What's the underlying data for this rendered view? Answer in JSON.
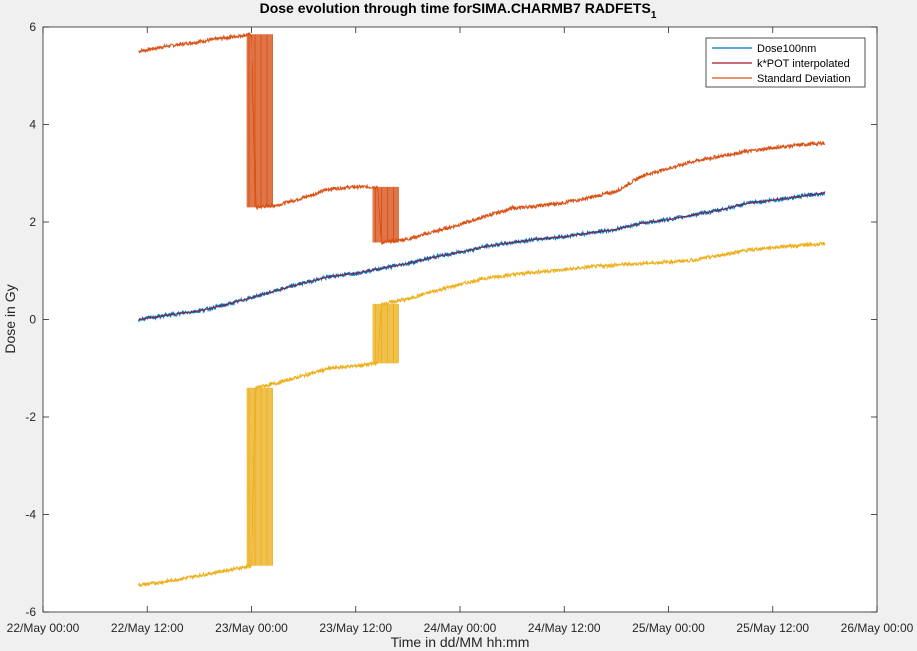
{
  "chart_data": {
    "type": "line",
    "title": "Dose evolution through time forSIMA.CHARMB7 RADFETS",
    "title_subscript": "1",
    "xlabel": "Time in dd/MM hh:mm",
    "ylabel": "Dose in Gy",
    "x_unit": "hours since 22/May 00:00",
    "xlim": [
      0,
      96
    ],
    "ylim": [
      -6,
      6
    ],
    "x_ticks": [
      0,
      12,
      24,
      36,
      48,
      60,
      72,
      84,
      96
    ],
    "x_tick_labels": [
      "22/May 00:00",
      "22/May 12:00",
      "23/May 00:00",
      "23/May 12:00",
      "24/May 00:00",
      "24/May 12:00",
      "25/May 00:00",
      "25/May 12:00",
      "26/May 00:00"
    ],
    "y_ticks": [
      -6,
      -4,
      -2,
      0,
      2,
      4,
      6
    ],
    "y_tick_labels": [
      "-6",
      "-4",
      "-2",
      "0",
      "2",
      "4",
      "6"
    ],
    "legend_position": "top-right",
    "series": [
      {
        "name": "Dose100nm",
        "color": "#0072bd",
        "x": [
          11,
          14,
          18,
          21,
          24,
          27,
          30,
          33,
          36,
          39,
          42,
          45,
          48,
          51,
          54,
          57,
          60,
          63,
          66,
          69,
          72,
          75,
          78,
          81,
          84,
          87,
          90
        ],
        "y": [
          0.0,
          0.08,
          0.18,
          0.3,
          0.45,
          0.6,
          0.75,
          0.88,
          0.95,
          1.05,
          1.15,
          1.28,
          1.38,
          1.5,
          1.58,
          1.65,
          1.7,
          1.78,
          1.85,
          1.98,
          2.05,
          2.15,
          2.25,
          2.38,
          2.45,
          2.52,
          2.6
        ]
      },
      {
        "name": "k*POT interpolated",
        "color": "#a2142f",
        "x": [
          11,
          14,
          18,
          21,
          24,
          27,
          30,
          33,
          36,
          39,
          42,
          45,
          48,
          51,
          54,
          57,
          60,
          63,
          66,
          69,
          72,
          75,
          78,
          81,
          84,
          87,
          90
        ],
        "y": [
          0.0,
          0.08,
          0.18,
          0.3,
          0.45,
          0.6,
          0.75,
          0.88,
          0.95,
          1.05,
          1.15,
          1.28,
          1.38,
          1.5,
          1.58,
          1.65,
          1.7,
          1.78,
          1.85,
          1.98,
          2.05,
          2.15,
          2.25,
          2.38,
          2.45,
          2.52,
          2.6
        ]
      },
      {
        "name": "Standard Deviation",
        "color": "#d95319",
        "x": [
          11,
          14,
          18,
          21,
          24,
          24.5,
          27,
          30,
          33,
          36,
          38.5,
          39,
          42,
          45,
          48,
          51,
          54,
          57,
          60,
          63,
          66,
          69,
          72,
          75,
          78,
          81,
          84,
          87,
          90
        ],
        "y": [
          5.5,
          5.6,
          5.7,
          5.78,
          5.85,
          2.3,
          2.35,
          2.5,
          2.68,
          2.72,
          2.72,
          1.58,
          1.65,
          1.8,
          1.95,
          2.12,
          2.28,
          2.33,
          2.4,
          2.5,
          2.63,
          2.95,
          3.1,
          3.25,
          3.35,
          3.45,
          3.52,
          3.58,
          3.62
        ]
      },
      {
        "name": "",
        "color": "#edb120",
        "x": [
          11,
          14,
          18,
          21,
          24,
          24.5,
          27,
          30,
          33,
          36,
          38.5,
          39,
          42,
          45,
          48,
          51,
          54,
          57,
          60,
          63,
          66,
          69,
          72,
          75,
          78,
          81,
          84,
          87,
          90
        ],
        "y": [
          -5.45,
          -5.38,
          -5.25,
          -5.15,
          -5.05,
          -1.4,
          -1.3,
          -1.15,
          -1.0,
          -0.95,
          -0.9,
          0.32,
          0.42,
          0.58,
          0.72,
          0.85,
          0.92,
          0.98,
          1.02,
          1.08,
          1.12,
          1.15,
          1.18,
          1.22,
          1.32,
          1.42,
          1.48,
          1.52,
          1.55
        ]
      }
    ]
  }
}
